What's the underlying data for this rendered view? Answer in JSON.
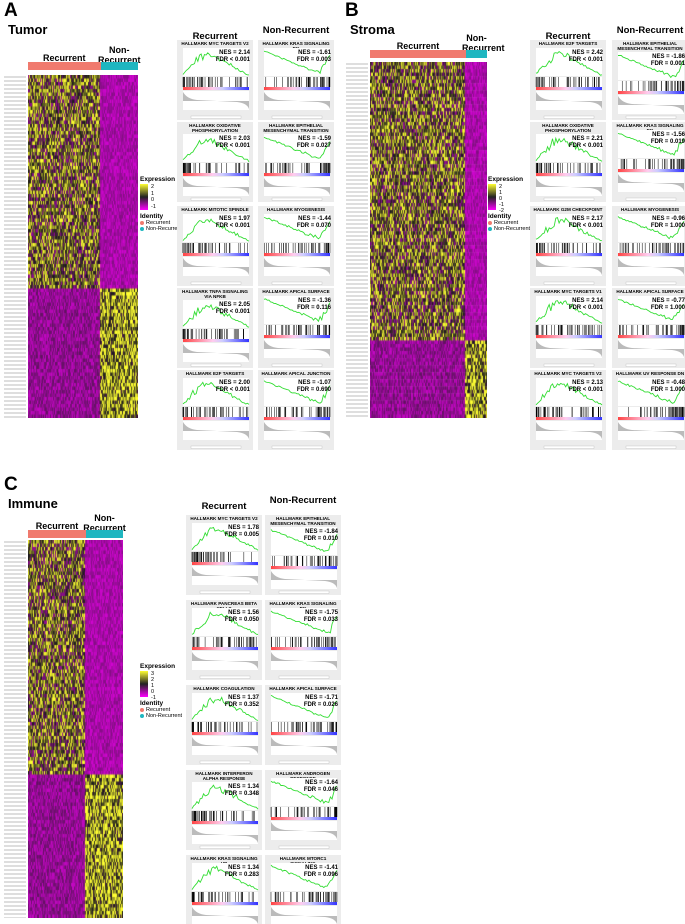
{
  "colors": {
    "recurrent": "#f07a6e",
    "non_recurrent": "#1fb6c0",
    "high": "#ffff33",
    "mid": "#1a1a1a",
    "low": "#ff00ff",
    "es_curve": "#33dd33"
  },
  "panels": [
    {
      "letter": "A",
      "title": "Tumor",
      "group_recurrent": "Recurrent",
      "group_nonrecurrent": "Non-Recurrent",
      "gsea_col_recurrent": "Recurrent",
      "gsea_col_nonrecurrent": "Non-Recurrent",
      "legend": {
        "expression_title": "Expression",
        "ticks": [
          "2",
          "1",
          "0",
          "-1"
        ],
        "identity_title": "Identity",
        "identity_items": [
          "Recurrent",
          "Non-Recurrent"
        ]
      }
    },
    {
      "letter": "B",
      "title": "Stroma",
      "group_recurrent": "Recurrent",
      "group_nonrecurrent": "Non-Recurrent",
      "gsea_col_recurrent": "Recurrent",
      "gsea_col_nonrecurrent": "Non-Recurrent",
      "legend": {
        "expression_title": "Expression",
        "ticks": [
          "2",
          "1",
          "0",
          "-1",
          "-2"
        ],
        "identity_title": "Identity",
        "identity_items": [
          "Recurrent",
          "Non-Recurrent"
        ]
      }
    },
    {
      "letter": "C",
      "title": "Immune",
      "group_recurrent": "Recurrent",
      "group_nonrecurrent": "Non-Recurrent",
      "gsea_col_recurrent": "Recurrent",
      "gsea_col_nonrecurrent": "Non-Recurrent",
      "legend": {
        "expression_title": "Expression",
        "ticks": [
          "3",
          "2",
          "1",
          "0",
          "-1"
        ],
        "identity_title": "Identity",
        "identity_items": [
          "Recurrent",
          "Non-Recurrent"
        ]
      }
    }
  ],
  "chart_data": [
    {
      "type": "heatmap",
      "panel": "A",
      "title": "Tumor",
      "columns_groups": [
        "Recurrent",
        "Non-Recurrent"
      ],
      "color_scale": [
        -1,
        2
      ],
      "gsea": [
        {
          "title": "HALLMARK MYC TARGETS V2",
          "nes": "NES = 2.14",
          "fdr": "FDR < 0.001",
          "enriched_in": "Recurrent"
        },
        {
          "title": "HALLMARK KRAS SIGNALING DN",
          "nes": "NES = -1.61",
          "fdr": "FDR = 0.003",
          "enriched_in": "Non-Recurrent"
        },
        {
          "title": "HALLMARK OXIDATIVE PHOSPHORYLATION",
          "nes": "NES = 2.03",
          "fdr": "FDR < 0.001",
          "enriched_in": "Recurrent"
        },
        {
          "title": "HALLMARK EPITHELIAL MESENCHYMAL TRANSITION",
          "nes": "NES = -1.59",
          "fdr": "FDR = 0.027",
          "enriched_in": "Non-Recurrent"
        },
        {
          "title": "HALLMARK MITOTIC SPINDLE",
          "nes": "NES = 1.97",
          "fdr": "FDR < 0.001",
          "enriched_in": "Recurrent"
        },
        {
          "title": "HALLMARK MYOGENESIS",
          "nes": "NES = -1.44",
          "fdr": "FDR = 0.070",
          "enriched_in": "Non-Recurrent"
        },
        {
          "title": "HALLMARK TNFA SIGNALING VIA NFKB",
          "nes": "NES = 2.05",
          "fdr": "FDR < 0.001",
          "enriched_in": "Recurrent"
        },
        {
          "title": "HALLMARK APICAL SURFACE",
          "nes": "NES = -1.36",
          "fdr": "FDR = 0.116",
          "enriched_in": "Non-Recurrent"
        },
        {
          "title": "HALLMARK E2F TARGETS",
          "nes": "NES = 2.00",
          "fdr": "FDR < 0.001",
          "enriched_in": "Recurrent"
        },
        {
          "title": "HALLMARK APICAL JUNCTION",
          "nes": "NES = -1.07",
          "fdr": "FDR = 0.690",
          "enriched_in": "Non-Recurrent"
        }
      ]
    },
    {
      "type": "heatmap",
      "panel": "B",
      "title": "Stroma",
      "columns_groups": [
        "Recurrent",
        "Non-Recurrent"
      ],
      "color_scale": [
        -2,
        2
      ],
      "gsea": [
        {
          "title": "HALLMARK E2F TARGETS",
          "nes": "NES = 2.42",
          "fdr": "FDR < 0.001",
          "enriched_in": "Recurrent"
        },
        {
          "title": "HALLMARK EPITHELIAL MESENCHYMAL TRANSITION",
          "nes": "NES = -1.86",
          "fdr": "FDR = 0.001",
          "enriched_in": "Non-Recurrent"
        },
        {
          "title": "HALLMARK OXIDATIVE PHOSPHORYLATION",
          "nes": "NES = 2.21",
          "fdr": "FDR < 0.001",
          "enriched_in": "Recurrent"
        },
        {
          "title": "HALLMARK KRAS SIGNALING DN",
          "nes": "NES = -1.56",
          "fdr": "FDR = 0.019",
          "enriched_in": "Non-Recurrent"
        },
        {
          "title": "HALLMARK G2M CHECKPOINT",
          "nes": "NES = 2.17",
          "fdr": "FDR < 0.001",
          "enriched_in": "Recurrent"
        },
        {
          "title": "HALLMARK MYOGENESIS",
          "nes": "NES = -0.96",
          "fdr": "FDR = 1.000",
          "enriched_in": "Non-Recurrent"
        },
        {
          "title": "HALLMARK MYC TARGETS V1",
          "nes": "NES = 2.14",
          "fdr": "FDR < 0.001",
          "enriched_in": "Recurrent"
        },
        {
          "title": "HALLMARK APICAL SURFACE",
          "nes": "NES = -0.77",
          "fdr": "FDR = 1.000",
          "enriched_in": "Non-Recurrent"
        },
        {
          "title": "HALLMARK MYC TARGETS V2",
          "nes": "NES = 2.13",
          "fdr": "FDR < 0.001",
          "enriched_in": "Recurrent"
        },
        {
          "title": "HALLMARK UV RESPONSE DN",
          "nes": "NES = -0.48",
          "fdr": "FDR = 1.000",
          "enriched_in": "Non-Recurrent"
        }
      ]
    },
    {
      "type": "heatmap",
      "panel": "C",
      "title": "Immune",
      "columns_groups": [
        "Recurrent",
        "Non-Recurrent"
      ],
      "color_scale": [
        -1,
        3
      ],
      "gsea": [
        {
          "title": "HALLMARK MYC TARGETS V2",
          "nes": "NES = 1.78",
          "fdr": "FDR = 0.005",
          "enriched_in": "Recurrent"
        },
        {
          "title": "HALLMARK EPITHELIAL MESENCHYMAL TRANSITION",
          "nes": "NES = -1.84",
          "fdr": "FDR = 0.010",
          "enriched_in": "Non-Recurrent"
        },
        {
          "title": "HALLMARK PANCREAS BETA CELLS",
          "nes": "NES = 1.56",
          "fdr": "FDR = 0.050",
          "enriched_in": "Recurrent"
        },
        {
          "title": "HALLMARK KRAS SIGNALING DN",
          "nes": "NES = -1.75",
          "fdr": "FDR = 0.033",
          "enriched_in": "Non-Recurrent"
        },
        {
          "title": "HALLMARK COAGULATION",
          "nes": "NES = 1.37",
          "fdr": "FDR = 0.352",
          "enriched_in": "Recurrent"
        },
        {
          "title": "HALLMARK APICAL SURFACE",
          "nes": "NES = -1.71",
          "fdr": "FDR = 0.026",
          "enriched_in": "Non-Recurrent"
        },
        {
          "title": "HALLMARK INTERFERON ALPHA RESPONSE",
          "nes": "NES = 1.34",
          "fdr": "FDR = 0.348",
          "enriched_in": "Recurrent"
        },
        {
          "title": "HALLMARK ANDROGEN RESPONSE",
          "nes": "NES = -1.64",
          "fdr": "FDR = 0.046",
          "enriched_in": "Non-Recurrent"
        },
        {
          "title": "HALLMARK KRAS SIGNALING UP",
          "nes": "NES = 1.34",
          "fdr": "FDR = 0.283",
          "enriched_in": "Recurrent"
        },
        {
          "title": "HALLMARK MTORC1 SIGNALING",
          "nes": "NES = -1.41",
          "fdr": "FDR = 0.096",
          "enriched_in": "Non-Recurrent"
        }
      ]
    }
  ]
}
